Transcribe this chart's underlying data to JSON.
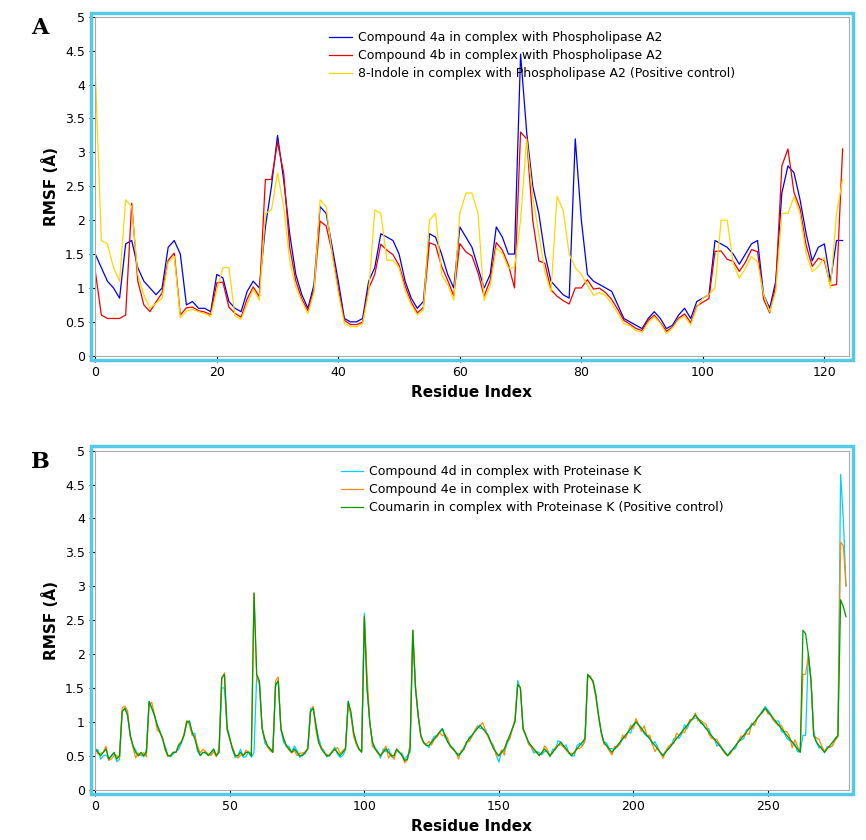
{
  "panel_A": {
    "label": "A",
    "xlabel": "Residue Index",
    "ylabel": "RMSF (Å)",
    "xlim": [
      0,
      124
    ],
    "ylim": [
      0,
      5
    ],
    "yticks": [
      0,
      0.5,
      1,
      1.5,
      2,
      2.5,
      3,
      3.5,
      4,
      4.5,
      5
    ],
    "xticks": [
      0,
      20,
      40,
      60,
      80,
      100,
      120
    ],
    "legend": [
      {
        "label": "Compound 4a in complex with Phospholipase A2",
        "color": "#0000EE"
      },
      {
        "label": "Compound 4b in complex with Phospholipase A2",
        "color": "#EE0000"
      },
      {
        "label": "8-Indole in complex with Phospholipase A2 (Positive control)",
        "color": "#FFD700"
      }
    ]
  },
  "panel_B": {
    "label": "B",
    "xlabel": "Residue Index",
    "ylabel": "RMSF (Å)",
    "xlim": [
      0,
      280
    ],
    "ylim": [
      0,
      5
    ],
    "yticks": [
      0,
      0.5,
      1,
      1.5,
      2,
      2.5,
      3,
      3.5,
      4,
      4.5,
      5
    ],
    "xticks": [
      0,
      50,
      100,
      150,
      200,
      250
    ],
    "legend": [
      {
        "label": "Compound 4d in complex with Proteinase K",
        "color": "#00CFFF"
      },
      {
        "label": "Compound 4e in complex with Proteinase K",
        "color": "#FF8C00"
      },
      {
        "label": "Coumarin in complex with Proteinase K (Positive control)",
        "color": "#009900"
      }
    ]
  },
  "border_color": "#56C8E8",
  "spine_color": "#AAAAAA",
  "linewidth": 0.9
}
